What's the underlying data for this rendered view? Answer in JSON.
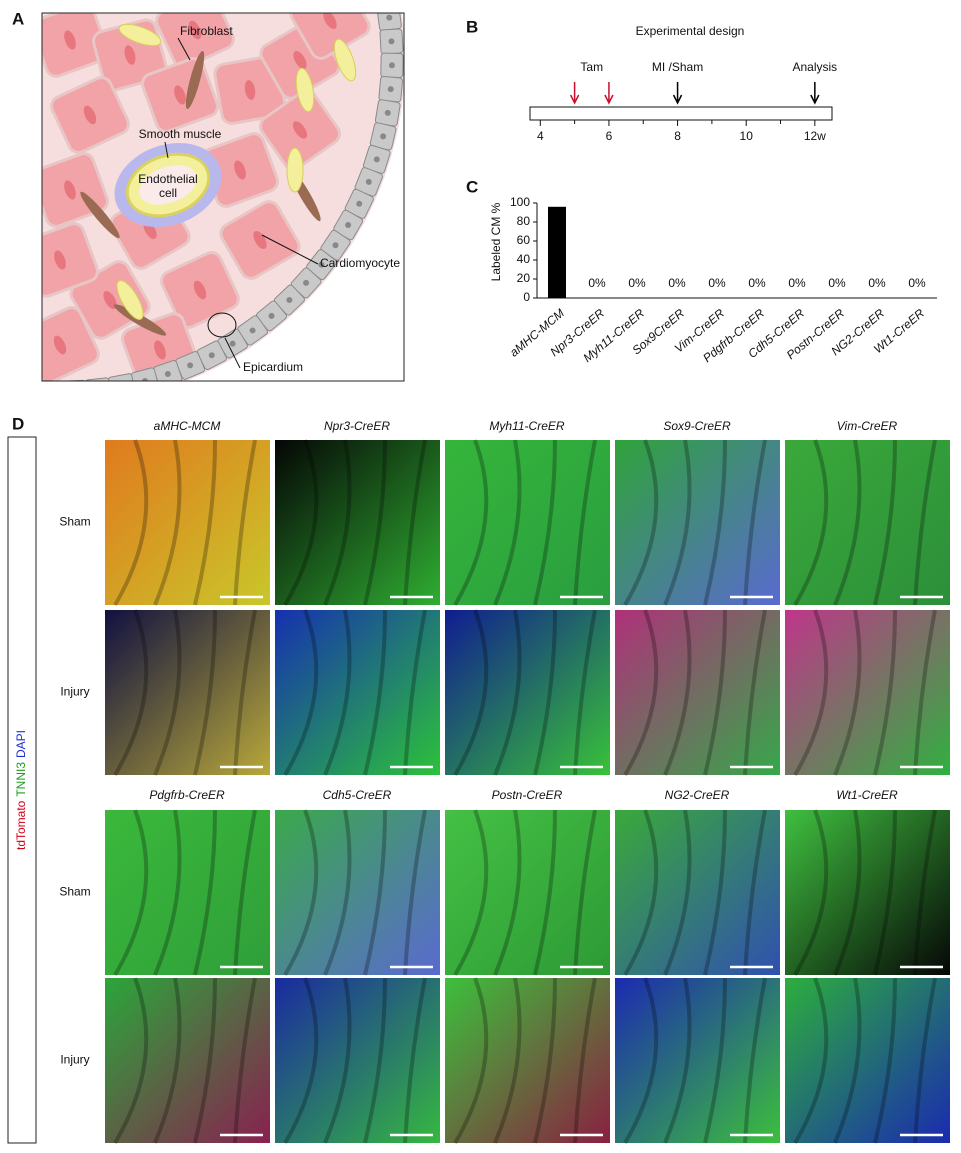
{
  "panel_a": {
    "label": "A",
    "labels": {
      "fibroblast": "Fibroblast",
      "smooth_muscle": "Smooth muscle",
      "endothelial": [
        "Endothelial",
        "cell"
      ],
      "cardiomyocyte": "Cardiomyocyte",
      "epicardium": "Epicardium"
    }
  },
  "panel_b": {
    "label": "B",
    "title": "Experimental design",
    "xlim": [
      3.7,
      12.5
    ],
    "xticks": [
      4,
      6,
      8,
      10,
      {
        "value": 12,
        "label": "12w"
      }
    ],
    "minor_ticks": [
      5,
      7,
      9,
      11
    ],
    "events": [
      {
        "label": "Tam",
        "x": [
          5,
          6
        ],
        "color": "#c8102e"
      },
      {
        "label": "MI /Sham",
        "x": [
          8
        ],
        "color": "#000000"
      },
      {
        "label": "Analysis",
        "x": [
          12
        ],
        "color": "#000000"
      }
    ]
  },
  "panel_c": {
    "label": "C"
  },
  "chart_data": {
    "type": "bar",
    "ylabel": "Labeled CM %",
    "categories": [
      "aMHC-MCM",
      "Npr3-CreER",
      "Myh11-CreER",
      "Sox9CreER",
      "Vim-CreER",
      "Pdgfrb-CreER",
      "Cdh5-CreER",
      "Postn-CreER",
      "NG2-CreER",
      "Wt1-CreER"
    ],
    "values": [
      96,
      0,
      0,
      0,
      0,
      0,
      0,
      0,
      0,
      0
    ],
    "value_labels": [
      null,
      "0%",
      "0%",
      "0%",
      "0%",
      "0%",
      "0%",
      "0%",
      "0%",
      "0%"
    ],
    "color": "#000000",
    "ylim": [
      0,
      100
    ],
    "yticks": [
      0,
      20,
      40,
      60,
      80,
      100
    ]
  },
  "panel_d": {
    "label": "D",
    "stain": [
      "tdTomato",
      "TNNI3",
      "DAPI"
    ],
    "rows": [
      "Sham",
      "Injury"
    ],
    "groups": [
      [
        "aMHC-MCM",
        "Npr3-CreER",
        "Myh11-CreER",
        "Sox9-CreER",
        "Vim-CreER"
      ],
      [
        "Pdgfrb-CreER",
        "Cdh5-CreER",
        "Postn-CreER",
        "NG2-CreER",
        "Wt1-CreER"
      ]
    ]
  }
}
